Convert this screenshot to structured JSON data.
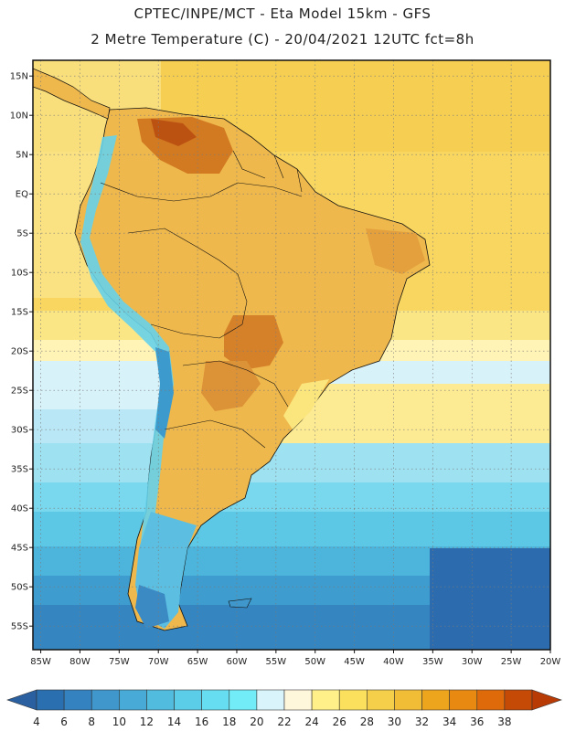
{
  "header": {
    "line1": "CPTEC/INPE/MCT -  Eta Model 15km - GFS",
    "line2": "2 Metre Temperature (C) - 20/04/2021 12UTC fct=8h"
  },
  "map": {
    "lat_range": [
      -58,
      17
    ],
    "lon_range": [
      -86,
      -20
    ],
    "lat_labels": [
      "15N",
      "10N",
      "5N",
      "EQ",
      "5S",
      "10S",
      "15S",
      "20S",
      "25S",
      "30S",
      "35S",
      "40S",
      "45S",
      "50S",
      "55S"
    ],
    "lat_values": [
      15,
      10,
      5,
      0,
      -5,
      -10,
      -15,
      -20,
      -25,
      -30,
      -35,
      -40,
      -45,
      -50,
      -55
    ],
    "lon_labels": [
      "85W",
      "80W",
      "75W",
      "70W",
      "65W",
      "60W",
      "55W",
      "50W",
      "45W",
      "40W",
      "35W",
      "30W",
      "25W",
      "20W"
    ],
    "lon_values": [
      -85,
      -80,
      -75,
      -70,
      -65,
      -60,
      -55,
      -50,
      -45,
      -40,
      -35,
      -30,
      -25,
      -20
    ]
  },
  "colorbar": {
    "labels": [
      "4",
      "6",
      "8",
      "10",
      "12",
      "14",
      "16",
      "18",
      "20",
      "22",
      "24",
      "26",
      "28",
      "30",
      "32",
      "34",
      "36",
      "38"
    ],
    "colors": [
      "#2a6fb0",
      "#3582c0",
      "#3f97cb",
      "#48aad6",
      "#52bcdf",
      "#5ccde8",
      "#66ddf0",
      "#72ecf7",
      "#d9f4fb",
      "#fff7dc",
      "#fff08a",
      "#fbe05e",
      "#f6cf4a",
      "#f1bc36",
      "#eea51e",
      "#e88a12",
      "#de6a0a",
      "#c54a06"
    ],
    "low_color": "#2a5fa0",
    "high_color": "#b83a05"
  },
  "colors": {
    "ocean_equatorial": "#f8d96a",
    "land_warm": "#eeb549",
    "land_hot": "#d88a2a",
    "land_hottest": "#bb5a14",
    "southern_cold": "#3c8ac4",
    "frame": "#111111",
    "grid": "#7a7a7a"
  }
}
